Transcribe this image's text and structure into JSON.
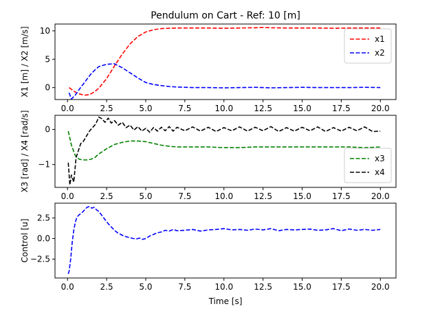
{
  "figure": {
    "title": "Pendulum on Cart - Ref: 10 [m]",
    "xlabel": "Time [s]"
  },
  "chart_data": [
    {
      "type": "line",
      "ylabel": "X1 [m] / X2 [m/s]",
      "xlim": [
        -0.8,
        21.0
      ],
      "ylim": [
        -2.1,
        11.2
      ],
      "xticks": [
        "0.0",
        "2.5",
        "5.0",
        "7.5",
        "10.0",
        "12.5",
        "15.0",
        "17.5",
        "20.0"
      ],
      "xtick_values": [
        0,
        2.5,
        5,
        7.5,
        10,
        12.5,
        15,
        17.5,
        20
      ],
      "yticks": [
        "0",
        "5",
        "10"
      ],
      "ytick_values": [
        0,
        5,
        10
      ],
      "legend": "top-right",
      "x": [
        0.1,
        0.25,
        0.5,
        0.75,
        1.0,
        1.25,
        1.5,
        1.75,
        2.0,
        2.5,
        3.0,
        3.5,
        4.0,
        4.5,
        5.0,
        5.5,
        6.0,
        6.5,
        7.0,
        7.5,
        8.0,
        9.0,
        10.0,
        11.0,
        12.0,
        12.5,
        13.0,
        14.0,
        15.0,
        16.0,
        17.0,
        18.0,
        19.0,
        20.0
      ],
      "series": [
        {
          "name": "x1",
          "color": "#ff0000",
          "dash": "dashed",
          "values": [
            0.0,
            -0.3,
            -0.8,
            -1.1,
            -1.3,
            -1.3,
            -1.1,
            -0.7,
            -0.1,
            1.6,
            3.8,
            5.9,
            7.7,
            9.0,
            9.8,
            10.2,
            10.4,
            10.45,
            10.5,
            10.5,
            10.5,
            10.5,
            10.45,
            10.5,
            10.55,
            10.6,
            10.55,
            10.5,
            10.5,
            10.5,
            10.45,
            10.5,
            10.5,
            10.5
          ]
        },
        {
          "name": "x2",
          "color": "#0000ff",
          "dash": "dashed",
          "values": [
            -0.9,
            -2.0,
            -1.3,
            -0.3,
            0.6,
            1.5,
            2.4,
            3.1,
            3.7,
            4.1,
            4.2,
            3.5,
            2.6,
            1.7,
            0.9,
            0.55,
            0.35,
            0.2,
            0.1,
            0.05,
            0.0,
            0.0,
            -0.05,
            0.0,
            0.05,
            0.0,
            -0.05,
            0.0,
            0.05,
            0.0,
            0.0,
            0.0,
            0.05,
            0.0
          ]
        }
      ]
    },
    {
      "type": "line",
      "ylabel": "X3 [rad] / X4 [rad/s]",
      "xlim": [
        -0.8,
        21.0
      ],
      "ylim": [
        -1.65,
        0.4
      ],
      "xticks": [
        "0.0",
        "2.5",
        "5.0",
        "7.5",
        "10.0",
        "12.5",
        "15.0",
        "17.5",
        "20.0"
      ],
      "xtick_values": [
        0,
        2.5,
        5,
        7.5,
        10,
        12.5,
        15,
        17.5,
        20
      ],
      "yticks": [
        "0",
        "−1"
      ],
      "ytick_values": [
        0,
        -1
      ],
      "legend": "bottom-right",
      "series": [
        {
          "name": "x3",
          "color": "#008000",
          "dash": "dashed",
          "x": [
            0.05,
            0.25,
            0.5,
            0.75,
            1.0,
            1.25,
            1.5,
            1.75,
            2.0,
            2.5,
            3.0,
            3.5,
            4.0,
            4.5,
            5.0,
            5.5,
            6.0,
            6.5,
            7.0,
            8.0,
            9.0,
            10.0,
            11.0,
            12.0,
            13.0,
            14.0,
            15.0,
            16.0,
            17.0,
            18.0,
            19.0,
            20.0
          ],
          "values": [
            -0.05,
            -0.45,
            -0.75,
            -0.85,
            -0.87,
            -0.87,
            -0.85,
            -0.8,
            -0.7,
            -0.55,
            -0.43,
            -0.37,
            -0.33,
            -0.33,
            -0.35,
            -0.4,
            -0.45,
            -0.48,
            -0.5,
            -0.5,
            -0.5,
            -0.52,
            -0.52,
            -0.5,
            -0.5,
            -0.5,
            -0.5,
            -0.5,
            -0.5,
            -0.5,
            -0.52,
            -0.5
          ]
        },
        {
          "name": "x4",
          "color": "#000000",
          "dash": "dashed",
          "x": [
            0.05,
            0.15,
            0.25,
            0.4,
            0.55,
            0.7,
            0.85,
            1.0,
            1.2,
            1.4,
            1.6,
            1.8,
            2.0,
            2.2,
            2.4,
            2.6,
            2.8,
            3.0,
            3.25,
            3.5,
            3.75,
            4.0,
            4.25,
            4.5,
            4.75,
            5.0,
            5.25,
            5.5,
            5.75,
            6.0,
            6.25,
            6.5,
            6.75,
            7.0,
            7.5,
            8.0,
            8.5,
            9.0,
            9.5,
            10.0,
            10.5,
            11.0,
            11.5,
            12.0,
            12.5,
            13.0,
            13.5,
            14.0,
            14.5,
            15.0,
            15.5,
            16.0,
            16.5,
            17.0,
            17.5,
            18.0,
            18.5,
            19.0,
            19.5,
            20.0
          ],
          "values": [
            -0.95,
            -1.58,
            -1.3,
            -1.5,
            -0.8,
            -0.6,
            -0.4,
            -0.35,
            -0.2,
            -0.05,
            0.05,
            0.15,
            0.35,
            0.3,
            0.2,
            0.32,
            0.18,
            0.25,
            0.12,
            0.2,
            0.05,
            0.12,
            -0.02,
            0.08,
            -0.05,
            0.03,
            -0.08,
            0.05,
            -0.05,
            0.06,
            -0.04,
            0.08,
            -0.05,
            0.06,
            -0.04,
            0.07,
            -0.05,
            0.06,
            -0.06,
            0.05,
            -0.04,
            0.07,
            -0.05,
            0.06,
            -0.04,
            0.08,
            -0.06,
            0.05,
            -0.05,
            0.06,
            -0.04,
            0.07,
            -0.06,
            0.05,
            -0.05,
            0.06,
            -0.04,
            0.07,
            -0.06,
            -0.05
          ]
        }
      ]
    },
    {
      "type": "line",
      "ylabel": "Control [u]",
      "xlim": [
        -0.8,
        21.0
      ],
      "ylim": [
        -4.8,
        4.3
      ],
      "xticks": [
        "0.0",
        "2.5",
        "5.0",
        "7.5",
        "10.0",
        "12.5",
        "15.0",
        "17.5",
        "20.0"
      ],
      "xtick_values": [
        0,
        2.5,
        5,
        7.5,
        10,
        12.5,
        15,
        17.5,
        20
      ],
      "yticks": [
        "2.5",
        "0.0",
        "−2.5"
      ],
      "ytick_values": [
        2.5,
        0,
        -2.5
      ],
      "series": [
        {
          "name": "",
          "color": "#0000ff",
          "dash": "dashed",
          "x": [
            0.05,
            0.1,
            0.2,
            0.3,
            0.4,
            0.5,
            0.6,
            0.75,
            0.9,
            1.0,
            1.1,
            1.25,
            1.4,
            1.55,
            1.7,
            1.85,
            2.0,
            2.2,
            2.4,
            2.6,
            2.8,
            3.0,
            3.2,
            3.4,
            3.6,
            3.8,
            4.0,
            4.2,
            4.4,
            4.6,
            4.8,
            5.0,
            5.25,
            5.5,
            5.75,
            6.0,
            6.25,
            6.5,
            6.75,
            7.0,
            7.5,
            8.0,
            8.5,
            9.0,
            9.5,
            10.0,
            10.5,
            11.0,
            11.5,
            12.0,
            12.5,
            13.0,
            13.5,
            14.0,
            14.5,
            15.0,
            15.5,
            16.0,
            16.5,
            17.0,
            17.5,
            18.0,
            18.5,
            19.0,
            19.5,
            20.0
          ],
          "values": [
            -4.3,
            -4.0,
            -2.5,
            -0.5,
            1.0,
            2.0,
            2.6,
            2.9,
            3.1,
            3.3,
            3.5,
            3.8,
            3.9,
            3.7,
            3.8,
            3.5,
            3.3,
            2.8,
            2.3,
            1.8,
            1.4,
            1.0,
            0.7,
            0.5,
            0.3,
            0.2,
            0.1,
            0.0,
            -0.05,
            0.05,
            -0.1,
            0.0,
            0.3,
            0.5,
            0.7,
            0.8,
            1.0,
            0.9,
            1.1,
            0.95,
            1.0,
            1.1,
            0.9,
            1.05,
            1.1,
            1.2,
            1.05,
            1.1,
            1.0,
            1.15,
            1.05,
            1.2,
            0.95,
            1.1,
            1.05,
            1.1,
            1.15,
            1.0,
            1.05,
            1.2,
            0.95,
            1.15,
            1.0,
            1.1,
            1.0,
            1.1
          ]
        }
      ]
    }
  ]
}
